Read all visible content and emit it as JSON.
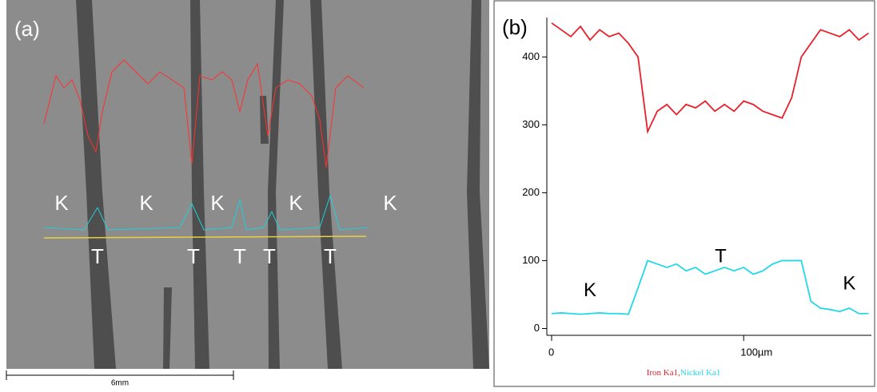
{
  "panel_a": {
    "label": "(a)",
    "k_labels": [
      "K",
      "K",
      "K",
      "K",
      "K"
    ],
    "t_labels": [
      "T",
      "T",
      "T",
      "T",
      "T"
    ],
    "scale_bar": "6mm"
  },
  "chart_data": {
    "type": "line",
    "panel_label": "(b)",
    "x": [
      0,
      5,
      10,
      15,
      20,
      25,
      30,
      35,
      40,
      45,
      50,
      55,
      60,
      65,
      70,
      75,
      80,
      85,
      90,
      95,
      100,
      105,
      110,
      115,
      120,
      125,
      130,
      135,
      140,
      145,
      150,
      155,
      160,
      165
    ],
    "series": [
      {
        "name": "Iron Ka1",
        "color": "#e8202a",
        "values": [
          450,
          440,
          430,
          445,
          425,
          440,
          430,
          435,
          420,
          400,
          290,
          320,
          330,
          315,
          330,
          325,
          335,
          320,
          330,
          320,
          335,
          330,
          320,
          315,
          310,
          340,
          400,
          420,
          440,
          435,
          430,
          440,
          425,
          435
        ]
      },
      {
        "name": "Nickel Ka1",
        "color": "#22d8e8",
        "values": [
          22,
          23,
          22,
          21,
          22,
          23,
          22,
          22,
          21,
          60,
          100,
          95,
          90,
          95,
          85,
          90,
          80,
          85,
          90,
          85,
          90,
          80,
          85,
          95,
          100,
          100,
          100,
          40,
          30,
          28,
          25,
          30,
          22,
          22
        ]
      }
    ],
    "legend_separator": ",",
    "annotations": [
      {
        "text": "K",
        "x": 20,
        "y": 55
      },
      {
        "text": "T",
        "x": 88,
        "y": 105
      },
      {
        "text": "K",
        "x": 155,
        "y": 65
      }
    ],
    "xlim": [
      -2.5,
      166.5
    ],
    "xticks": [
      0,
      {
        "value": 100,
        "label": "100µm"
      }
    ],
    "ylim": [
      -10,
      458
    ],
    "yticks": [
      0,
      100,
      200,
      300,
      400
    ]
  }
}
